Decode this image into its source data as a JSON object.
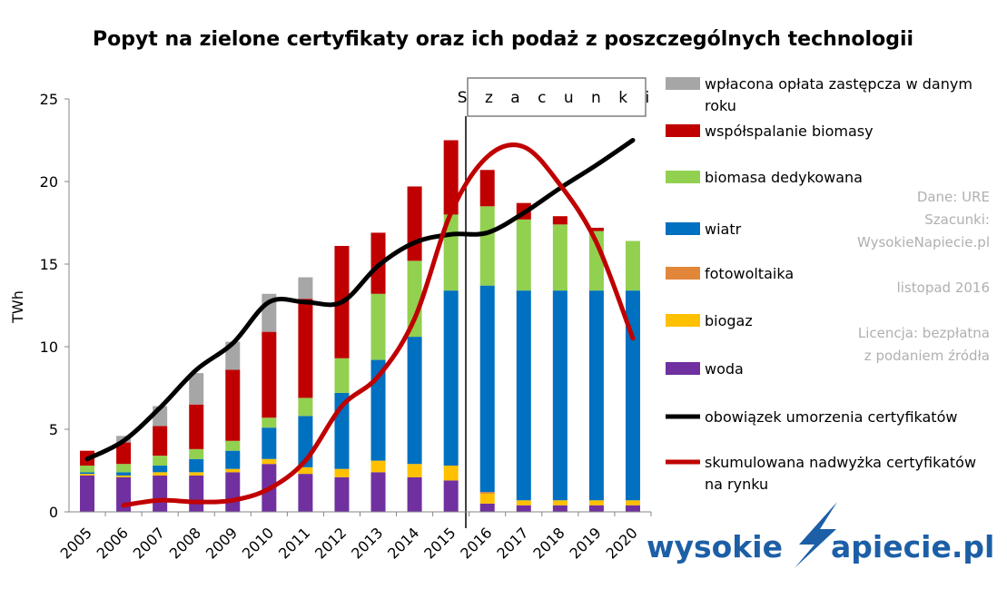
{
  "chart_data": {
    "type": "bar",
    "stacked": true,
    "title": "Popyt na zielone certyfikaty oraz ich podaż z poszczególnych technologii",
    "ylabel": "TWh",
    "xlabel": "",
    "ylim": [
      0,
      25
    ],
    "yticks": [
      "0",
      "5",
      "10",
      "15",
      "20",
      "25"
    ],
    "categories": [
      "2005",
      "2006",
      "2007",
      "2008",
      "2009",
      "2010",
      "2011",
      "2012",
      "2013",
      "2014",
      "2015",
      "2016",
      "2017",
      "2018",
      "2019",
      "2020"
    ],
    "bar_series": [
      {
        "name": "woda",
        "color": "#7030a0",
        "values": [
          2.2,
          2.1,
          2.2,
          2.2,
          2.4,
          2.9,
          2.3,
          2.1,
          2.4,
          2.1,
          1.9,
          0.5,
          0.4,
          0.4,
          0.4,
          0.4
        ]
      },
      {
        "name": "biogaz",
        "color": "#ffc000",
        "values": [
          0.1,
          0.1,
          0.2,
          0.2,
          0.2,
          0.3,
          0.4,
          0.5,
          0.7,
          0.8,
          0.9,
          0.6,
          0.3,
          0.3,
          0.3,
          0.3
        ]
      },
      {
        "name": "fotowoltaika",
        "color": "#e2873a",
        "values": [
          0,
          0,
          0,
          0,
          0,
          0,
          0,
          0,
          0,
          0,
          0,
          0.1,
          0,
          0,
          0,
          0
        ]
      },
      {
        "name": "wiatr",
        "color": "#0070c0",
        "values": [
          0.1,
          0.2,
          0.4,
          0.8,
          1.1,
          1.9,
          3.1,
          4.6,
          6.1,
          7.7,
          10.6,
          12.5,
          12.7,
          12.7,
          12.7,
          12.7
        ]
      },
      {
        "name": "biomasa dedykowana",
        "color": "#92d050",
        "values": [
          0.4,
          0.5,
          0.6,
          0.6,
          0.6,
          0.6,
          1.1,
          2.1,
          4.0,
          4.6,
          4.6,
          4.8,
          4.3,
          4.0,
          3.6,
          3.0
        ]
      },
      {
        "name": "współspalanie biomasy",
        "color": "#c00000",
        "values": [
          0.9,
          1.3,
          1.8,
          2.7,
          4.3,
          5.2,
          6.0,
          6.8,
          3.7,
          4.5,
          4.5,
          2.2,
          1.0,
          0.5,
          0.2,
          0
        ]
      },
      {
        "name": "wpłacona opłata zastępcza  w danym roku",
        "color": "#a6a6a6",
        "values": [
          0,
          0.4,
          1.2,
          1.9,
          1.7,
          2.3,
          1.3,
          0,
          0,
          0,
          0,
          0,
          0,
          0,
          0,
          0
        ]
      }
    ],
    "line_series": [
      {
        "name": "obowiązek umorzenia  certyfikatów",
        "color": "#000000",
        "values": [
          3.2,
          4.3,
          6.3,
          8.6,
          10.2,
          12.7,
          12.7,
          12.7,
          14.9,
          16.3,
          16.8,
          16.9,
          18.1,
          19.6,
          21.0,
          22.5
        ]
      },
      {
        "name": "skumulowana nadwyżka certyfikatów na rynku",
        "color": "#c00000",
        "values": [
          null,
          0.4,
          0.7,
          0.6,
          0.7,
          1.4,
          3.1,
          6.4,
          8.2,
          11.7,
          18.1,
          21.5,
          22.1,
          19.8,
          16.3,
          10.5
        ]
      }
    ],
    "estimate_label": "S z a c u n k i",
    "estimate_from": "2016",
    "legend": [
      {
        "kind": "box",
        "color": "#a6a6a6",
        "lines": [
          "wpłacona opłata zastępcza  w danym",
          "roku"
        ]
      },
      {
        "kind": "box",
        "color": "#c00000",
        "lines": [
          "współspalanie biomasy"
        ]
      },
      {
        "kind": "box",
        "color": "#92d050",
        "lines": [
          "biomasa dedykowana"
        ]
      },
      {
        "kind": "box",
        "color": "#0070c0",
        "lines": [
          "wiatr"
        ]
      },
      {
        "kind": "box",
        "color": "#e2873a",
        "lines": [
          "fotowoltaika"
        ]
      },
      {
        "kind": "box",
        "color": "#ffc000",
        "lines": [
          "biogaz"
        ]
      },
      {
        "kind": "box",
        "color": "#7030a0",
        "lines": [
          "woda"
        ]
      },
      {
        "kind": "line",
        "color": "#000000",
        "lines": [
          "obowiązek umorzenia  certyfikatów"
        ]
      },
      {
        "kind": "line",
        "color": "#c00000",
        "lines": [
          "skumulowana nadwyżka certyfikatów",
          "na rynku"
        ]
      }
    ],
    "legend_position": "right",
    "grid": false
  },
  "notes": {
    "source": "Dane: URE",
    "estimates": [
      "Szacunki:",
      "WysokieNapiecie.pl"
    ],
    "date": "listopad 2016",
    "license": [
      "Licencja: bezpłatna",
      "z podaniem źródła"
    ]
  },
  "logo": {
    "text": "wysokieNapiecie.pl",
    "part1": "wysokie",
    "part2": "apiecie.pl"
  }
}
